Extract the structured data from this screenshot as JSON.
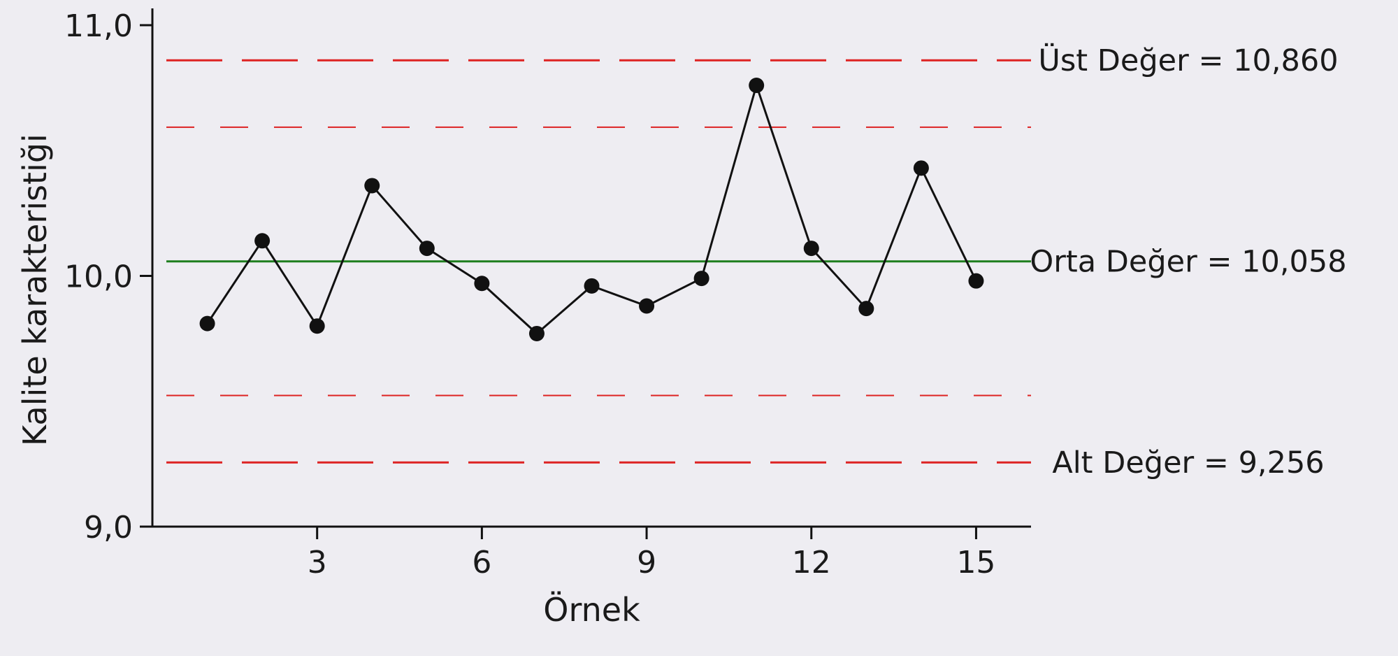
{
  "chart_data": {
    "type": "line",
    "title": "",
    "xlabel": "Örnek",
    "ylabel": "Kalite karakteristiği",
    "xlim": [
      0,
      16
    ],
    "ylim": [
      9.0,
      11.0
    ],
    "x_ticks": [
      3,
      6,
      9,
      12,
      15
    ],
    "x_tick_labels": [
      "3",
      "6",
      "9",
      "12",
      "15"
    ],
    "y_ticks": [
      9.0,
      10.0,
      11.0
    ],
    "y_tick_labels": [
      "9,0",
      "10,0",
      "11,0"
    ],
    "grid": false,
    "colors": {
      "series": "#111111",
      "center_line": "#1e7e1e",
      "control_limits": "#dd2222",
      "axis": "#111111",
      "background": "#eeedf2"
    },
    "series": [
      {
        "x": [
          1,
          2,
          3,
          4,
          5,
          6,
          7,
          8,
          9,
          10,
          11,
          12,
          13,
          14,
          15
        ],
        "values": [
          9.81,
          10.14,
          9.8,
          10.36,
          10.11,
          9.97,
          9.77,
          9.96,
          9.88,
          9.99,
          10.76,
          10.11,
          9.87,
          10.43,
          9.98
        ]
      }
    ],
    "reference_lines": [
      {
        "value": 10.86,
        "style": "long-dash",
        "color": "#dd2222",
        "label": "Üst Değer = 10,860"
      },
      {
        "value": 10.593,
        "style": "short-dash",
        "color": "#dd2222",
        "label": ""
      },
      {
        "value": 10.058,
        "style": "solid",
        "color": "#1e7e1e",
        "label": "Orta Değer = 10,058"
      },
      {
        "value": 9.523,
        "style": "short-dash",
        "color": "#dd2222",
        "label": ""
      },
      {
        "value": 9.256,
        "style": "long-dash",
        "color": "#dd2222",
        "label": "Alt Değer = 9,256"
      }
    ]
  }
}
